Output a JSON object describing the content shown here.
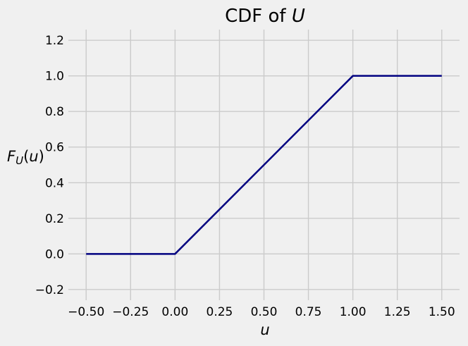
{
  "chart_data": {
    "type": "line",
    "title": {
      "prefix": "CDF of ",
      "variable": "U"
    },
    "xlabel": "u",
    "ylabel": {
      "main": "F",
      "subscript": "U",
      "open": "(",
      "arg": "u",
      "close": ")"
    },
    "xlim": [
      -0.6,
      1.6
    ],
    "ylim": [
      -0.26,
      1.26
    ],
    "x_ticks": [
      -0.5,
      -0.25,
      0.0,
      0.25,
      0.5,
      0.75,
      1.0,
      1.25,
      1.5
    ],
    "x_tick_labels": [
      "−0.50",
      "−0.25",
      "0.00",
      "0.25",
      "0.50",
      "0.75",
      "1.00",
      "1.25",
      "1.50"
    ],
    "y_ticks": [
      -0.2,
      0.0,
      0.2,
      0.4,
      0.6,
      0.8,
      1.0,
      1.2
    ],
    "y_tick_labels": [
      "−0.2",
      "0.0",
      "0.2",
      "0.4",
      "0.6",
      "0.8",
      "1.0",
      "1.2"
    ],
    "grid": true,
    "series": [
      {
        "x": [
          -0.5,
          0.0,
          1.0,
          1.5
        ],
        "y": [
          0.0,
          0.0,
          1.0,
          1.0
        ],
        "color": "#000080"
      }
    ],
    "background_color": "#f0f0f0",
    "grid_color": "#cbcbcb"
  }
}
